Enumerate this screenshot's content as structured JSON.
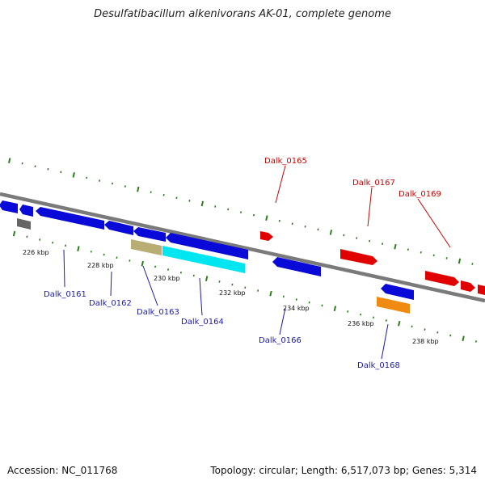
{
  "title": "Desulfatibacillum alkenivorans AK-01, complete genome",
  "accession": "Accession: NC_011768",
  "summary": "Topology: circular; Length: 6,517,073 bp; Genes: 5,314",
  "colors": {
    "backbone": "#7a7a7a",
    "tick": "#2e7d1f",
    "plus_strand_gene": "#e00000",
    "minus_strand_gene": "#0a0ad8",
    "plus_label": "#cc0000",
    "minus_label": "#1a1ab0",
    "cyan_feature": "#00e6f0",
    "tan_feature": "#b8ad72",
    "orange_feature": "#f08a10",
    "grey_feature": "#666666"
  },
  "kbp_labels": [
    "226 kbp",
    "228 kbp",
    "230 kbp",
    "232 kbp",
    "234 kbp",
    "236 kbp",
    "238 kbp"
  ],
  "gene_labels": [
    {
      "text": "Dalk_0161",
      "strand": "minus"
    },
    {
      "text": "Dalk_0162",
      "strand": "minus"
    },
    {
      "text": "Dalk_0163",
      "strand": "minus"
    },
    {
      "text": "Dalk_0164",
      "strand": "minus"
    },
    {
      "text": "Dalk_0165",
      "strand": "plus"
    },
    {
      "text": "Dalk_0166",
      "strand": "minus"
    },
    {
      "text": "Dalk_0167",
      "strand": "plus"
    },
    {
      "text": "Dalk_0168",
      "strand": "minus"
    },
    {
      "text": "Dalk_0169",
      "strand": "plus"
    }
  ]
}
